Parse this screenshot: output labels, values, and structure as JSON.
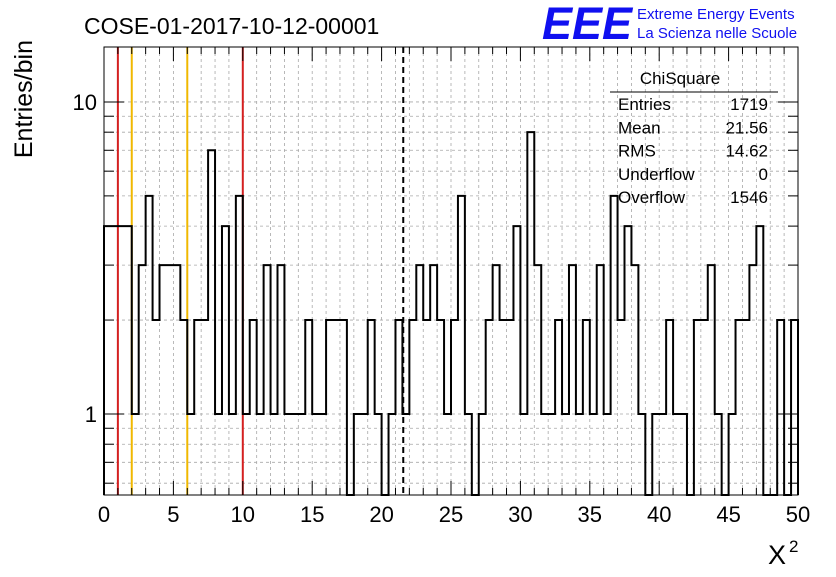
{
  "chart_data": {
    "type": "bar",
    "title": "COSE-01-2017-10-12-00001",
    "logo": {
      "letters": "EEE",
      "line1": "Extreme Energy Events",
      "line2": "La Scienza nelle Scuole",
      "color": "#1010f0"
    },
    "ylabel": "Entries/bin",
    "xlabel": "X",
    "xlabel_superscript": "2",
    "xlim": [
      0,
      50
    ],
    "ylim": [
      0.55,
      15
    ],
    "y_scale": "log",
    "grid": true,
    "bin_width": 0.5,
    "x_ticks": [
      0,
      5,
      10,
      15,
      20,
      25,
      30,
      35,
      40,
      45,
      50
    ],
    "x_tick_labels": [
      "0",
      "5",
      "10",
      "15",
      "20",
      "25",
      "30",
      "35",
      "40",
      "45",
      "50"
    ],
    "y_ticks": [
      1,
      10
    ],
    "y_tick_labels": [
      "1",
      "10"
    ],
    "histogram": [
      {
        "x": 0,
        "y": 4
      },
      {
        "x": 0.5,
        "y": 4
      },
      {
        "x": 1,
        "y": 4
      },
      {
        "x": 1.5,
        "y": 4
      },
      {
        "x": 2,
        "y": 1
      },
      {
        "x": 2.5,
        "y": 3
      },
      {
        "x": 3,
        "y": 5
      },
      {
        "x": 3.5,
        "y": 2
      },
      {
        "x": 4,
        "y": 3
      },
      {
        "x": 4.5,
        "y": 3
      },
      {
        "x": 5,
        "y": 3
      },
      {
        "x": 5.5,
        "y": 2
      },
      {
        "x": 6,
        "y": 1
      },
      {
        "x": 6.5,
        "y": 2
      },
      {
        "x": 7,
        "y": 2
      },
      {
        "x": 7.5,
        "y": 7
      },
      {
        "x": 8,
        "y": 1
      },
      {
        "x": 8.5,
        "y": 4
      },
      {
        "x": 9,
        "y": 1
      },
      {
        "x": 9.5,
        "y": 5
      },
      {
        "x": 10,
        "y": 1
      },
      {
        "x": 10.5,
        "y": 2
      },
      {
        "x": 11,
        "y": 1
      },
      {
        "x": 11.5,
        "y": 3
      },
      {
        "x": 12,
        "y": 1
      },
      {
        "x": 12.5,
        "y": 3
      },
      {
        "x": 13,
        "y": 1
      },
      {
        "x": 13.5,
        "y": 1
      },
      {
        "x": 14,
        "y": 1
      },
      {
        "x": 14.5,
        "y": 2
      },
      {
        "x": 15,
        "y": 1
      },
      {
        "x": 15.5,
        "y": 1
      },
      {
        "x": 16,
        "y": 2
      },
      {
        "x": 16.5,
        "y": 2
      },
      {
        "x": 17,
        "y": 2
      },
      {
        "x": 17.5,
        "y": 0.55
      },
      {
        "x": 18,
        "y": 1
      },
      {
        "x": 18.5,
        "y": 1
      },
      {
        "x": 19,
        "y": 2
      },
      {
        "x": 19.5,
        "y": 1
      },
      {
        "x": 20,
        "y": 0.55
      },
      {
        "x": 20.5,
        "y": 1
      },
      {
        "x": 21,
        "y": 2
      },
      {
        "x": 21.5,
        "y": 1
      },
      {
        "x": 22,
        "y": 2
      },
      {
        "x": 22.5,
        "y": 3
      },
      {
        "x": 23,
        "y": 2
      },
      {
        "x": 23.5,
        "y": 3
      },
      {
        "x": 24,
        "y": 2
      },
      {
        "x": 24.5,
        "y": 1
      },
      {
        "x": 25,
        "y": 2
      },
      {
        "x": 25.5,
        "y": 5
      },
      {
        "x": 26,
        "y": 1
      },
      {
        "x": 26.5,
        "y": 0.55
      },
      {
        "x": 27,
        "y": 1
      },
      {
        "x": 27.5,
        "y": 2
      },
      {
        "x": 28,
        "y": 3
      },
      {
        "x": 28.5,
        "y": 2
      },
      {
        "x": 29,
        "y": 2
      },
      {
        "x": 29.5,
        "y": 4
      },
      {
        "x": 30,
        "y": 1
      },
      {
        "x": 30.5,
        "y": 8
      },
      {
        "x": 31,
        "y": 3
      },
      {
        "x": 31.5,
        "y": 1
      },
      {
        "x": 32,
        "y": 1
      },
      {
        "x": 32.5,
        "y": 2
      },
      {
        "x": 33,
        "y": 1
      },
      {
        "x": 33.5,
        "y": 3
      },
      {
        "x": 34,
        "y": 1
      },
      {
        "x": 34.5,
        "y": 2
      },
      {
        "x": 35,
        "y": 1
      },
      {
        "x": 35.5,
        "y": 3
      },
      {
        "x": 36,
        "y": 1
      },
      {
        "x": 36.5,
        "y": 5
      },
      {
        "x": 37,
        "y": 2
      },
      {
        "x": 37.5,
        "y": 4
      },
      {
        "x": 38,
        "y": 3
      },
      {
        "x": 38.5,
        "y": 1
      },
      {
        "x": 39,
        "y": 0.55
      },
      {
        "x": 39.5,
        "y": 1
      },
      {
        "x": 40,
        "y": 1
      },
      {
        "x": 40.5,
        "y": 2
      },
      {
        "x": 41,
        "y": 1
      },
      {
        "x": 41.5,
        "y": 1
      },
      {
        "x": 42,
        "y": 0.55
      },
      {
        "x": 42.5,
        "y": 2
      },
      {
        "x": 43,
        "y": 2
      },
      {
        "x": 43.5,
        "y": 3
      },
      {
        "x": 44,
        "y": 1
      },
      {
        "x": 44.5,
        "y": 0.55
      },
      {
        "x": 45,
        "y": 1
      },
      {
        "x": 45.5,
        "y": 2
      },
      {
        "x": 46,
        "y": 2
      },
      {
        "x": 46.5,
        "y": 3
      },
      {
        "x": 47,
        "y": 4
      },
      {
        "x": 47.5,
        "y": 0.55
      },
      {
        "x": 48,
        "y": 0.55
      },
      {
        "x": 48.5,
        "y": 2
      },
      {
        "x": 49,
        "y": 0.55
      },
      {
        "x": 49.5,
        "y": 2
      }
    ],
    "reference_lines": [
      {
        "x": 1,
        "color": "#d42020",
        "style": "solid"
      },
      {
        "x": 2,
        "color": "#f0b800",
        "style": "solid"
      },
      {
        "x": 6,
        "color": "#f0b800",
        "style": "solid"
      },
      {
        "x": 10,
        "color": "#d42020",
        "style": "solid"
      },
      {
        "x": 21.56,
        "color": "#000000",
        "style": "dashed"
      }
    ],
    "stats_box": {
      "title": "ChiSquare",
      "rows": [
        {
          "label": "Entries",
          "value": "1719"
        },
        {
          "label": "Mean",
          "value": "21.56"
        },
        {
          "label": "RMS",
          "value": "14.62"
        },
        {
          "label": "Underflow",
          "value": "0"
        },
        {
          "label": "Overflow",
          "value": "1546"
        }
      ]
    }
  }
}
